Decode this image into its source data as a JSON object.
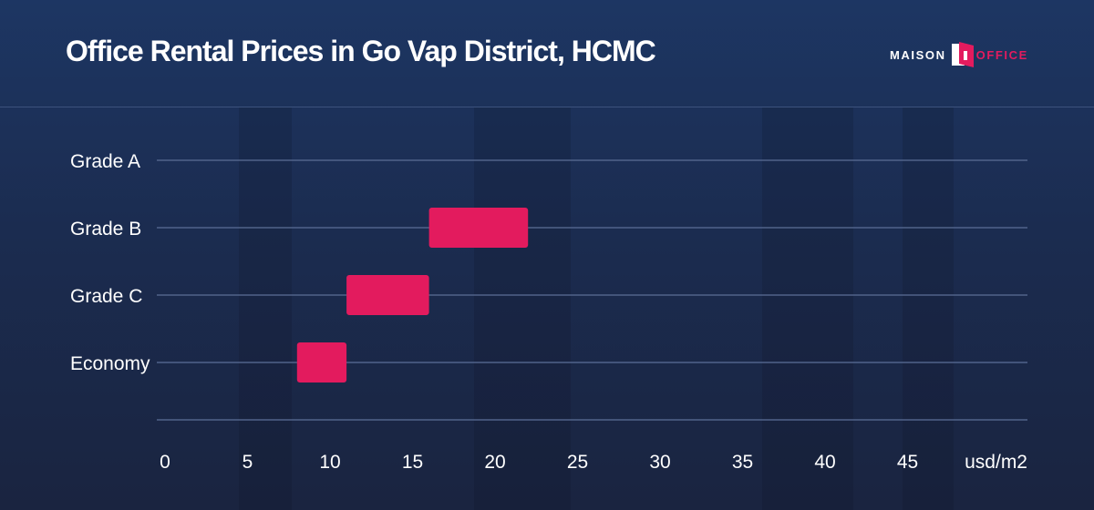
{
  "title": "Office Rental Prices in Go Vap District, HCMC",
  "logo": {
    "text_left": "MAISON",
    "text_right": "OFFICE"
  },
  "colors": {
    "bar": "#e31b5e",
    "grid": "#51638a",
    "text": "#ffffff",
    "background": "#1b2c50"
  },
  "chart_data": {
    "type": "bar",
    "orientation": "horizontal-range",
    "title": "Office Rental Prices in Go Vap District, HCMC",
    "categories": [
      "Grade A",
      "Grade B",
      "Grade C",
      "Economy"
    ],
    "series": [
      {
        "ranges": [
          null,
          [
            16,
            22
          ],
          [
            11,
            16
          ],
          [
            8,
            11
          ]
        ]
      }
    ],
    "x_ticks": [
      "0",
      "5",
      "10",
      "15",
      "20",
      "25",
      "30",
      "35",
      "40",
      "45"
    ],
    "x_unit": "usd/m2",
    "xlim": [
      0,
      50
    ],
    "grid": "horizontal"
  }
}
